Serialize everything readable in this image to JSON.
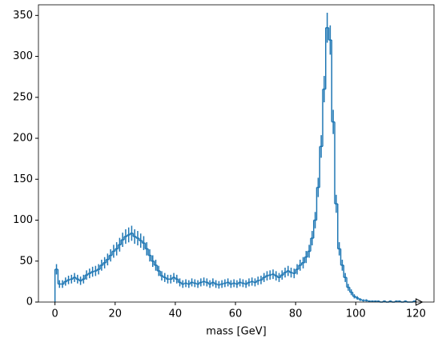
{
  "chart_data": {
    "type": "histogram",
    "x_label": "mass [GeV]",
    "color": "#1f77b4",
    "bins": [
      0,
      1,
      2,
      3,
      4,
      5,
      6,
      7,
      8,
      9,
      10,
      11,
      12,
      13,
      14,
      15,
      16,
      17,
      18,
      19,
      20,
      21,
      22,
      23,
      24,
      25,
      26,
      27,
      28,
      29,
      30,
      31,
      32,
      33,
      34,
      35,
      36,
      37,
      38,
      39,
      40,
      41,
      42,
      43,
      44,
      45,
      46,
      47,
      48,
      49,
      50,
      51,
      52,
      53,
      54,
      55,
      56,
      57,
      58,
      59,
      60,
      61,
      62,
      63,
      64,
      65,
      66,
      67,
      68,
      69,
      70,
      71,
      72,
      73,
      74,
      75,
      76,
      77,
      78,
      79,
      80,
      81,
      82,
      83,
      84,
      85,
      86,
      87,
      88,
      89,
      90,
      91,
      92,
      93,
      94,
      95,
      96,
      97,
      98,
      99,
      100,
      101,
      102,
      103,
      104,
      105,
      106,
      107,
      108,
      109,
      110,
      111,
      112,
      113,
      114,
      115,
      116,
      117,
      118,
      119,
      120
    ],
    "values": [
      40,
      22,
      22,
      25,
      27,
      28,
      30,
      28,
      26,
      28,
      33,
      35,
      37,
      38,
      40,
      45,
      48,
      52,
      57,
      62,
      65,
      70,
      76,
      80,
      82,
      84,
      80,
      78,
      75,
      72,
      65,
      57,
      50,
      45,
      38,
      32,
      30,
      28,
      28,
      30,
      28,
      24,
      22,
      23,
      22,
      24,
      23,
      22,
      24,
      25,
      24,
      22,
      24,
      22,
      21,
      22,
      23,
      24,
      22,
      23,
      22,
      24,
      23,
      22,
      24,
      25,
      24,
      26,
      27,
      30,
      32,
      33,
      34,
      32,
      30,
      33,
      36,
      38,
      36,
      35,
      40,
      45,
      48,
      55,
      62,
      78,
      100,
      140,
      190,
      260,
      335,
      320,
      220,
      120,
      65,
      45,
      30,
      18,
      12,
      7,
      5,
      3,
      2,
      2,
      1,
      1,
      1,
      1,
      0,
      1,
      0,
      1,
      0,
      1,
      1,
      0,
      1,
      0,
      0,
      1
    ],
    "errors": [
      6.3,
      4.7,
      4.7,
      5,
      5.2,
      5.3,
      5.5,
      5.3,
      5.1,
      5.3,
      5.7,
      5.9,
      6.1,
      6.2,
      6.3,
      6.7,
      6.9,
      7.2,
      7.5,
      7.9,
      8.1,
      8.4,
      8.7,
      8.9,
      9.1,
      9.2,
      8.9,
      8.8,
      8.7,
      8.5,
      8.1,
      7.5,
      7.1,
      6.7,
      6.2,
      5.7,
      5.5,
      5.3,
      5.3,
      5.5,
      5.3,
      4.9,
      4.7,
      4.8,
      4.7,
      4.9,
      4.8,
      4.7,
      4.9,
      5,
      4.9,
      4.7,
      4.9,
      4.7,
      4.6,
      4.7,
      4.8,
      4.9,
      4.7,
      4.8,
      4.7,
      4.9,
      4.8,
      4.7,
      4.9,
      5,
      4.9,
      5.1,
      5.2,
      5.5,
      5.7,
      5.7,
      5.8,
      5.7,
      5.5,
      5.7,
      6,
      6.2,
      6,
      5.9,
      6.3,
      6.7,
      6.9,
      7.4,
      7.9,
      8.8,
      10,
      11.8,
      13.8,
      16.1,
      18.3,
      17.9,
      14.8,
      11,
      8.1,
      6.7,
      5.5,
      4.2,
      3.5,
      2.6,
      2.2,
      1.7,
      1.4,
      1.4,
      1,
      1,
      1,
      1,
      0,
      1,
      0,
      1,
      0,
      1,
      1,
      0,
      1,
      0,
      0,
      1
    ],
    "xlim": [
      -5.5,
      126
    ],
    "ylim": [
      0,
      363
    ],
    "xticks": [
      0,
      20,
      40,
      60,
      80,
      100,
      120
    ],
    "yticks": [
      0,
      50,
      100,
      150,
      200,
      250,
      300,
      350
    ]
  }
}
